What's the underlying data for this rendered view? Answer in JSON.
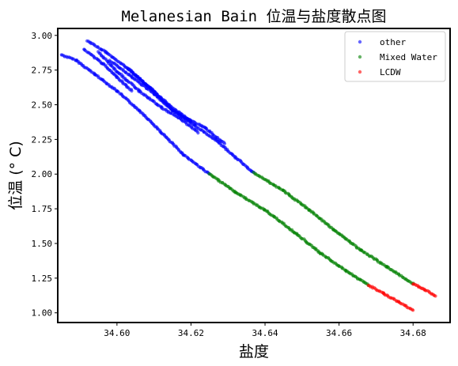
{
  "chart_data": {
    "type": "scatter",
    "title": "Melanesian Bain 位温与盐度散点图",
    "xlabel": "盐度",
    "ylabel": "位温 (° C)",
    "xlim": [
      34.584,
      34.69
    ],
    "ylim": [
      0.93,
      3.05
    ],
    "x_ticks": [
      34.6,
      34.62,
      34.64,
      34.66,
      34.68
    ],
    "x_tick_labels": [
      "34.60",
      "34.62",
      "34.64",
      "34.66",
      "34.68"
    ],
    "y_ticks": [
      1.0,
      1.25,
      1.5,
      1.75,
      2.0,
      2.25,
      2.5,
      2.75,
      3.0
    ],
    "y_tick_labels": [
      "1.00",
      "1.25",
      "1.50",
      "1.75",
      "2.00",
      "2.25",
      "2.50",
      "2.75",
      "3.00"
    ],
    "grid": false,
    "legend_position": "top-right",
    "series": [
      {
        "name": "other",
        "color": "#0000ff",
        "segments": [
          [
            [
              34.585,
              2.86
            ],
            [
              34.589,
              2.82
            ],
            [
              34.594,
              2.72
            ],
            [
              34.6,
              2.6
            ],
            [
              34.606,
              2.46
            ],
            [
              34.612,
              2.3
            ],
            [
              34.618,
              2.14
            ],
            [
              34.625,
              2.0
            ]
          ],
          [
            [
              34.592,
              2.96
            ],
            [
              34.597,
              2.88
            ],
            [
              34.603,
              2.76
            ],
            [
              34.609,
              2.62
            ],
            [
              34.615,
              2.46
            ],
            [
              34.621,
              2.35
            ],
            [
              34.627,
              2.24
            ],
            [
              34.632,
              2.12
            ],
            [
              34.637,
              2.01
            ]
          ],
          [
            [
              34.591,
              2.9
            ],
            [
              34.596,
              2.8
            ],
            [
              34.6,
              2.7
            ],
            [
              34.604,
              2.6
            ]
          ],
          [
            [
              34.595,
              2.88
            ],
            [
              34.6,
              2.74
            ],
            [
              34.606,
              2.6
            ],
            [
              34.612,
              2.48
            ],
            [
              34.617,
              2.4
            ],
            [
              34.622,
              2.3
            ]
          ],
          [
            [
              34.598,
              2.82
            ],
            [
              34.604,
              2.7
            ],
            [
              34.61,
              2.58
            ],
            [
              34.615,
              2.46
            ],
            [
              34.62,
              2.38
            ]
          ],
          [
            [
              34.603,
              2.76
            ],
            [
              34.609,
              2.62
            ],
            [
              34.614,
              2.5
            ],
            [
              34.619,
              2.4
            ],
            [
              34.624,
              2.33
            ],
            [
              34.629,
              2.22
            ]
          ]
        ]
      },
      {
        "name": "Mixed Water",
        "color": "#008000",
        "segments": [
          [
            [
              34.625,
              2.0
            ],
            [
              34.632,
              1.87
            ],
            [
              34.64,
              1.74
            ],
            [
              34.648,
              1.58
            ],
            [
              34.655,
              1.43
            ],
            [
              34.662,
              1.3
            ],
            [
              34.668,
              1.2
            ]
          ],
          [
            [
              34.637,
              2.01
            ],
            [
              34.645,
              1.88
            ],
            [
              34.652,
              1.74
            ],
            [
              34.659,
              1.59
            ],
            [
              34.666,
              1.45
            ],
            [
              34.673,
              1.33
            ],
            [
              34.68,
              1.21
            ]
          ]
        ]
      },
      {
        "name": "LCDW",
        "color": "#ff0000",
        "segments": [
          [
            [
              34.668,
              1.2
            ],
            [
              34.672,
              1.14
            ],
            [
              34.676,
              1.08
            ],
            [
              34.68,
              1.02
            ]
          ],
          [
            [
              34.68,
              1.21
            ],
            [
              34.683,
              1.17
            ],
            [
              34.686,
              1.12
            ]
          ]
        ]
      }
    ]
  }
}
